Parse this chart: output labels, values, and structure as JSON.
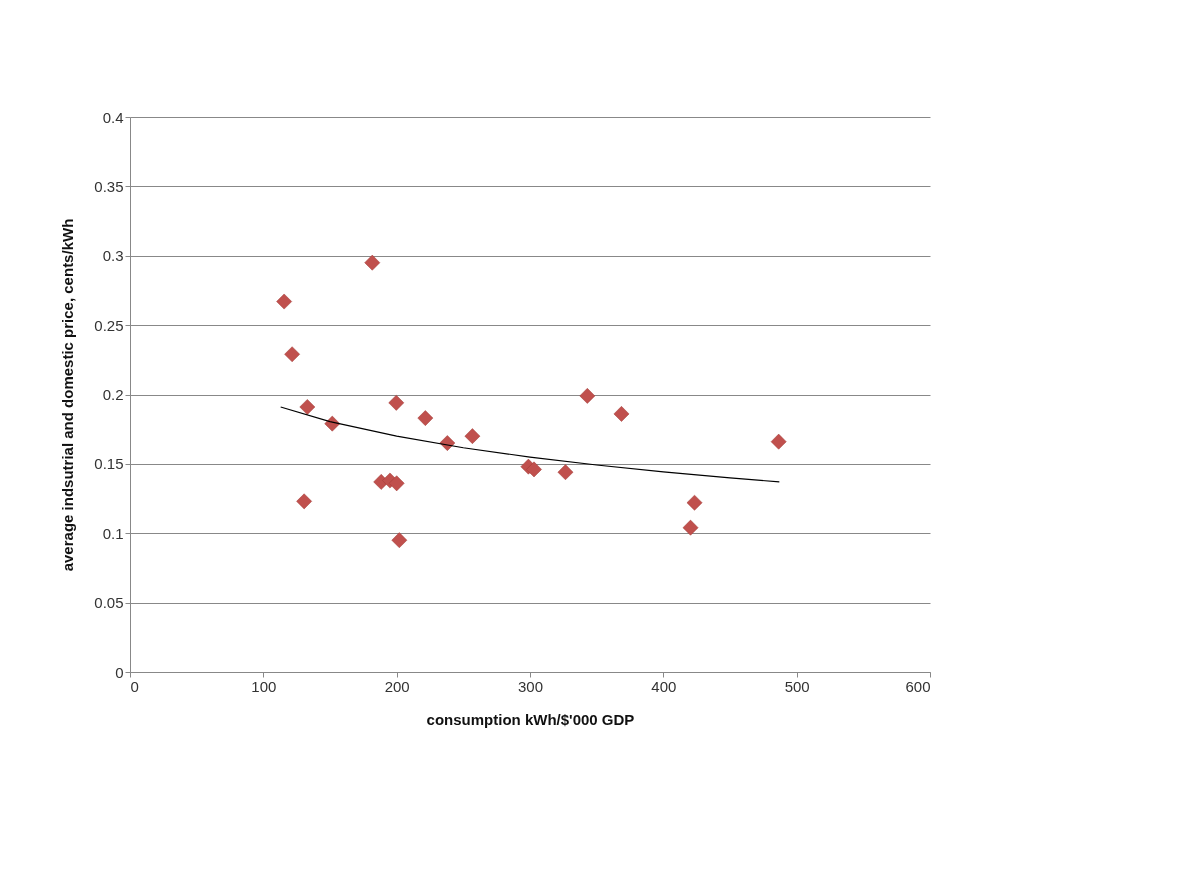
{
  "chart_data": {
    "type": "scatter",
    "xlabel": "consumption kWh/$'000 GDP",
    "ylabel": "average indsutrial and domestic price, cents/kWh",
    "xlim": [
      0,
      600
    ],
    "xticks": [
      0,
      100,
      200,
      300,
      400,
      500,
      600
    ],
    "ylim": [
      0,
      0.4
    ],
    "yticks": [
      0,
      0.05,
      0.1,
      0.15,
      0.2,
      0.25,
      0.3,
      0.35,
      0.4
    ],
    "grid": "y",
    "series": [
      {
        "marker": "diamond",
        "color": "#c0504d",
        "x": [
          115.6,
          121.6,
          133,
          151.7,
          130.6,
          181.7,
          188.4,
          195,
          200,
          199.7,
          202,
          221.5,
          238,
          256.8,
          298.8,
          303,
          326.6,
          343,
          368.6,
          420.4,
          423.4,
          486.5
        ],
        "values": [
          0.267,
          0.229,
          0.191,
          0.179,
          0.123,
          0.295,
          0.137,
          0.138,
          0.136,
          0.194,
          0.095,
          0.183,
          0.165,
          0.17,
          0.148,
          0.146,
          0.144,
          0.199,
          0.186,
          0.104,
          0.122,
          0.166
        ]
      },
      {
        "type": "line",
        "color": "#000000",
        "line_style": "solid",
        "x": [
          113,
          150,
          200,
          250,
          300,
          350,
          400,
          450,
          487
        ],
        "values": [
          0.191,
          0.1805,
          0.17,
          0.1616,
          0.1549,
          0.1492,
          0.1443,
          0.1399,
          0.137
        ]
      }
    ]
  }
}
